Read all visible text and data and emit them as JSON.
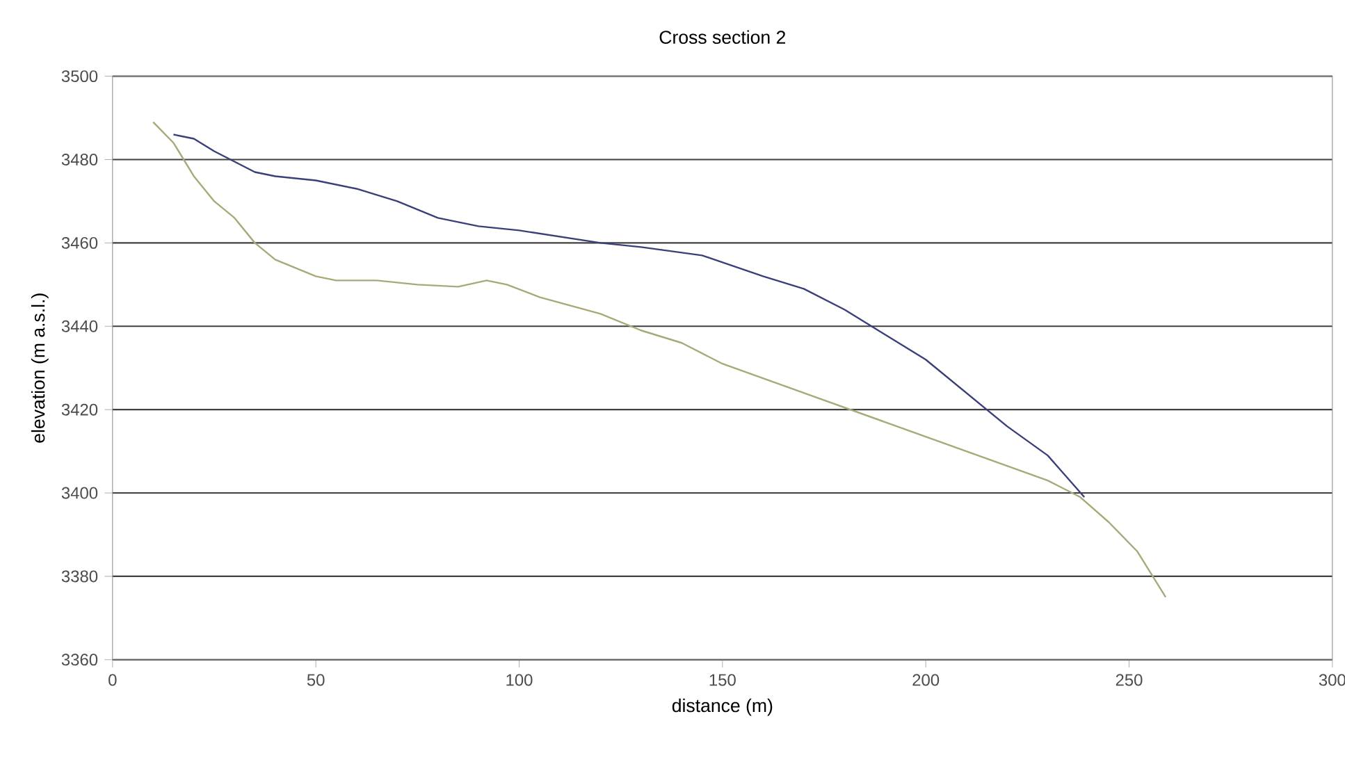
{
  "chart_data": {
    "type": "line",
    "title": "Cross section 2",
    "xlabel": "distance (m)",
    "ylabel": "elevation (m a.s.l.)",
    "xlim": [
      0,
      300
    ],
    "ylim": [
      3360,
      3500
    ],
    "xticks": [
      0,
      50,
      100,
      150,
      200,
      250,
      300
    ],
    "yticks": [
      3360,
      3380,
      3400,
      3420,
      3440,
      3460,
      3480,
      3500
    ],
    "grid": "y",
    "series": [
      {
        "color": "#3a3f7a",
        "x": [
          15,
          20,
          25,
          35,
          40,
          50,
          60,
          70,
          80,
          90,
          100,
          120,
          130,
          145,
          160,
          170,
          180,
          190,
          200,
          210,
          220,
          230,
          239
        ],
        "values": [
          3486,
          3485,
          3482,
          3477,
          3476,
          3475,
          3473,
          3470,
          3466,
          3464,
          3463,
          3460,
          3459,
          3457,
          3452,
          3449,
          3444,
          3438,
          3432,
          3424,
          3416,
          3409,
          3399
        ]
      },
      {
        "color": "#a8a878",
        "x": [
          10,
          15,
          20,
          25,
          30,
          35,
          40,
          50,
          55,
          65,
          75,
          85,
          92,
          97,
          105,
          120,
          130,
          140,
          150,
          170,
          190,
          210,
          230,
          238,
          245,
          252,
          259
        ],
        "values": [
          3489,
          3484,
          3476,
          3470,
          3466,
          3460,
          3456,
          3452,
          3451,
          3451,
          3450,
          3449.5,
          3451,
          3450,
          3447,
          3443,
          3439,
          3436,
          3431,
          3424,
          3417,
          3410,
          3403,
          3399,
          3393,
          3386,
          3375
        ]
      }
    ]
  }
}
